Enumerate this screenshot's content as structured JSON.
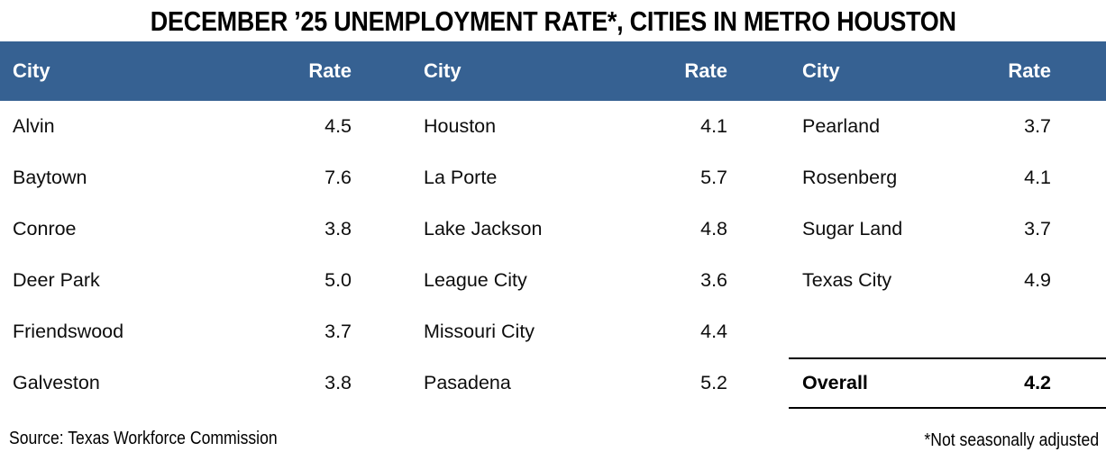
{
  "title": "DECEMBER ’25 UNEMPLOYMENT RATE*, CITIES IN METRO HOUSTON",
  "colors": {
    "header_bg": "#366192",
    "header_text": "#ffffff",
    "body_text": "#0d0d0d",
    "rule": "#000000"
  },
  "table": {
    "column_headers": {
      "city": "City",
      "rate": "Rate"
    },
    "groups": [
      {
        "rows": [
          {
            "city": "Alvin",
            "rate": "4.5"
          },
          {
            "city": "Baytown",
            "rate": "7.6"
          },
          {
            "city": "Conroe",
            "rate": "3.8"
          },
          {
            "city": "Deer Park",
            "rate": "5.0"
          },
          {
            "city": "Friendswood",
            "rate": "3.7"
          },
          {
            "city": "Galveston",
            "rate": "3.8"
          }
        ]
      },
      {
        "rows": [
          {
            "city": "Houston",
            "rate": "4.1"
          },
          {
            "city": "La Porte",
            "rate": "5.7"
          },
          {
            "city": "Lake Jackson",
            "rate": "4.8"
          },
          {
            "city": "League City",
            "rate": "3.6"
          },
          {
            "city": "Missouri City",
            "rate": "4.4"
          },
          {
            "city": "Pasadena",
            "rate": "5.2"
          }
        ]
      },
      {
        "rows": [
          {
            "city": "Pearland",
            "rate": "3.7"
          },
          {
            "city": "Rosenberg",
            "rate": "4.1"
          },
          {
            "city": "Sugar Land",
            "rate": "3.7"
          },
          {
            "city": "Texas City",
            "rate": "4.9"
          }
        ]
      },
      {
        "overall_label": "Overall",
        "overall_rate": "4.2"
      }
    ]
  },
  "footer": {
    "source": "Source: Texas Workforce Commission",
    "footnote": "*Not seasonally adjusted"
  },
  "chart_data": {
    "type": "table",
    "title": "DECEMBER ’25 UNEMPLOYMENT RATE*, CITIES IN METRO HOUSTON",
    "columns": [
      "City",
      "Rate"
    ],
    "rows": [
      [
        "Alvin",
        4.5
      ],
      [
        "Baytown",
        7.6
      ],
      [
        "Conroe",
        3.8
      ],
      [
        "Deer Park",
        5.0
      ],
      [
        "Friendswood",
        3.7
      ],
      [
        "Galveston",
        3.8
      ],
      [
        "Houston",
        4.1
      ],
      [
        "La Porte",
        5.7
      ],
      [
        "Lake Jackson",
        4.8
      ],
      [
        "League City",
        3.6
      ],
      [
        "Missouri City",
        4.4
      ],
      [
        "Pasadena",
        5.2
      ],
      [
        "Pearland",
        3.7
      ],
      [
        "Rosenberg",
        4.1
      ],
      [
        "Sugar Land",
        3.7
      ],
      [
        "Texas City",
        4.9
      ]
    ],
    "overall": 4.2,
    "source": "Source: Texas Workforce Commission",
    "footnote": "*Not seasonally adjusted"
  }
}
